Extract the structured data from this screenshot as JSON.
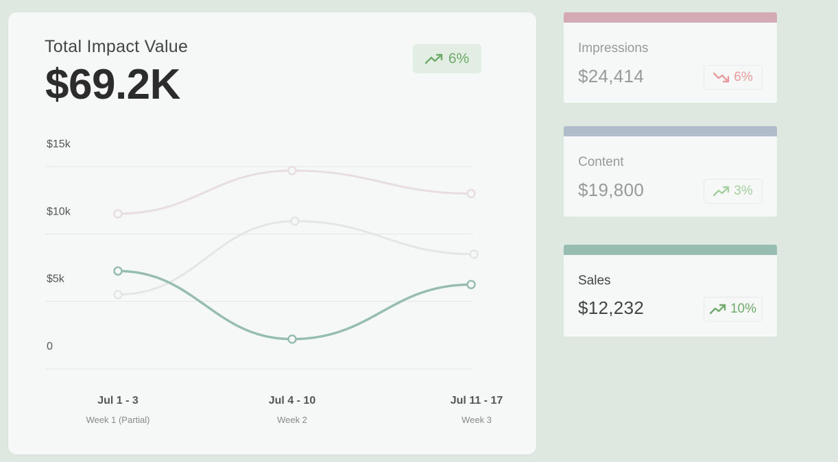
{
  "main": {
    "title": "Total Impact Value",
    "value": "$69.2K",
    "badge": {
      "text": "6%",
      "icon": "trending-up-icon",
      "color": "#6eaa6a"
    }
  },
  "chart_data": {
    "type": "line",
    "categories": [
      "Jul 1 - 3",
      "Jul 4 - 10",
      "Jul 11 - 17"
    ],
    "category_sublabels": [
      "Week 1 (Partial)",
      "Week 2",
      "Week 3"
    ],
    "y_ticks": [
      "$15k",
      "$10k",
      "$5k",
      "0"
    ],
    "y_tick_values": [
      15000,
      10000,
      5000,
      0
    ],
    "ylim": [
      0,
      15000
    ],
    "grid": true,
    "series": [
      {
        "values": [
          11500,
          14700,
          13000
        ],
        "color": "#e8dde0"
      },
      {
        "values": [
          5500,
          10950,
          8500
        ],
        "color": "#e3e6e5"
      },
      {
        "values": [
          7250,
          2200,
          6250
        ],
        "color": "#97bdb3"
      }
    ]
  },
  "cards": [
    {
      "label": "Impressions",
      "value": "$24,414",
      "badge_text": "6%",
      "badge_icon": "trending-down-icon",
      "badge_color": "#e89a9a",
      "bar_color": "#d4aab4"
    },
    {
      "label": "Content",
      "value": "$19,800",
      "badge_text": "3%",
      "badge_icon": "trending-up-icon",
      "badge_color": "#a5cf9f",
      "bar_color": "#b0bcca"
    },
    {
      "label": "Sales",
      "value": "$12,232",
      "badge_text": "10%",
      "badge_icon": "trending-up-icon",
      "badge_color": "#6eaa6a",
      "bar_color": "#97bdb3"
    }
  ]
}
